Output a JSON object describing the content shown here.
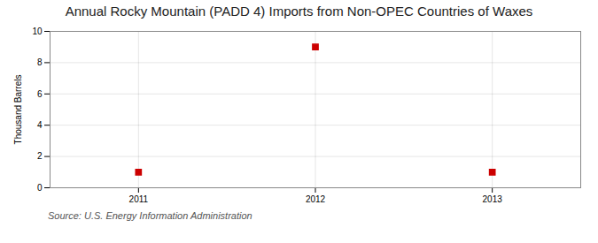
{
  "chart_data": {
    "type": "scatter",
    "title": "Annual Rocky Mountain (PADD 4) Imports from Non-OPEC Countries of Waxes",
    "ylabel": "Thousand Barrels",
    "caption": "Source: U.S. Energy Information Administration",
    "x": [
      2011,
      2012,
      2013
    ],
    "values": [
      1,
      9,
      1
    ],
    "color": "#cc0000",
    "marker": "square",
    "xlim": [
      2010.5,
      2013.5
    ],
    "xticks": [
      2011,
      2012,
      2013
    ],
    "ylim": [
      0,
      10
    ],
    "yticks": [
      0,
      2,
      4,
      6,
      8,
      10
    ],
    "grid": true
  }
}
